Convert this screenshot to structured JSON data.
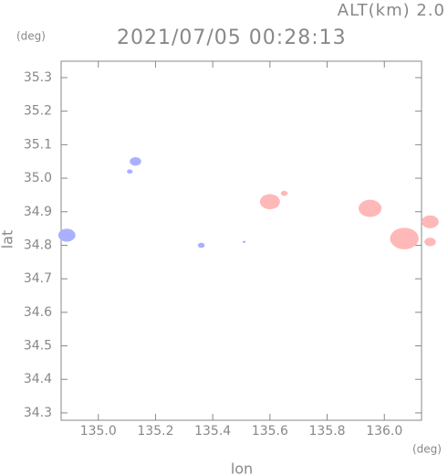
{
  "chart_data": {
    "type": "scatter",
    "title": "2021/07/05 00:28:13",
    "subtitle": "ALT(km) 2.0",
    "y_unit": "(deg)",
    "x_unit": "(deg)",
    "xlabel": "lon",
    "ylabel": "lat",
    "x": [
      134.89,
      135.13,
      135.11,
      135.36,
      135.51,
      135.6,
      135.65,
      135.95,
      136.07,
      136.16,
      136.16
    ],
    "values": [
      34.83,
      35.05,
      35.02,
      34.8,
      34.81,
      34.93,
      34.955,
      34.91,
      34.82,
      34.87,
      34.81
    ],
    "sizes": [
      0.03,
      0.02,
      0.01,
      0.012,
      0.005,
      0.035,
      0.012,
      0.04,
      0.05,
      0.03,
      0.02
    ],
    "colors": [
      "#aab0ff",
      "#aab0ff",
      "#aab0ff",
      "#aab0ff",
      "#aab0ff",
      "#ffb8b8",
      "#ffb8b8",
      "#ffb8b8",
      "#ffb8b8",
      "#ffb8b8",
      "#ffb8b8"
    ],
    "xlim": [
      134.87,
      136.13
    ],
    "ylim": [
      34.278,
      35.349
    ],
    "xticks": [
      {
        "value": 135,
        "label": "135.0"
      },
      135.2,
      135.4,
      135.6,
      135.8,
      {
        "value": 136,
        "label": "136.0"
      }
    ],
    "yticks": [
      34.3,
      34.4,
      34.5,
      34.6,
      34.7,
      34.8,
      34.9,
      {
        "value": 35,
        "label": "35.0"
      },
      35.1,
      35.2,
      35.3
    ]
  }
}
